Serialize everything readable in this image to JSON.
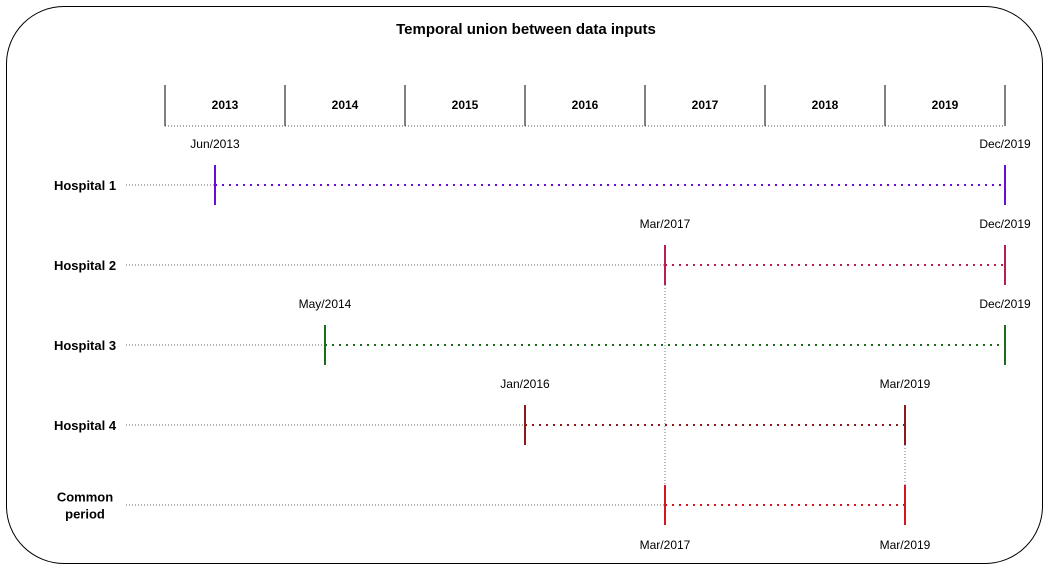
{
  "title": "Temporal union between data inputs",
  "years": [
    "2013",
    "2014",
    "2015",
    "2016",
    "2017",
    "2018",
    "2019"
  ],
  "rows": [
    {
      "label": "Hospital 1",
      "start": "Jun/2013",
      "end": "Dec/2019",
      "color": "#6a0dd6"
    },
    {
      "label": "Hospital 2",
      "start": "Mar/2017",
      "end": "Dec/2019",
      "color": "#b5204d"
    },
    {
      "label": "Hospital 3",
      "start": "May/2014",
      "end": "Dec/2019",
      "color": "#1e6b1e"
    },
    {
      "label": "Hospital 4",
      "start": "Jan/2016",
      "end": "Mar/2019",
      "color": "#8b1a1a"
    },
    {
      "label": "Common\nperiod",
      "start": "Mar/2017",
      "end": "Mar/2019",
      "color": "#d6161f"
    }
  ]
}
